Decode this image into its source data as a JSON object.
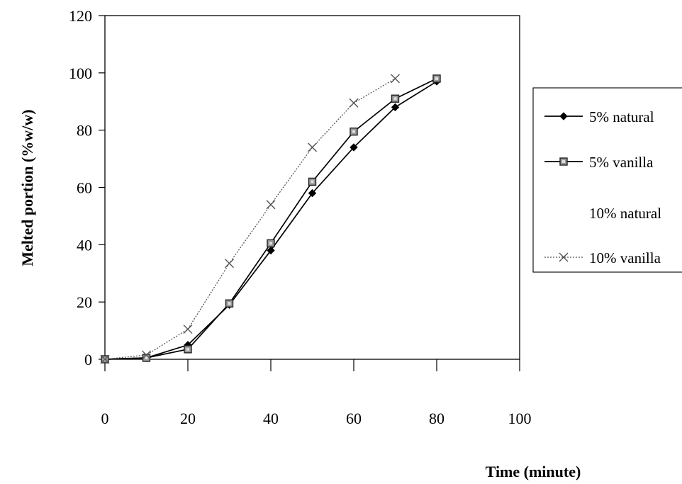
{
  "chart_data": {
    "type": "line",
    "xlabel": "Time (minute)",
    "ylabel": "Melted portion (%w/w)",
    "xlim": [
      0,
      100
    ],
    "ylim": [
      0,
      120
    ],
    "x_ticks": [
      0,
      20,
      40,
      60,
      80,
      100
    ],
    "y_ticks": [
      0,
      20,
      40,
      60,
      80,
      100,
      120
    ],
    "grid": false,
    "legend_position": "right",
    "series": [
      {
        "name": "5% natural",
        "color": "#000000",
        "marker": "diamond",
        "line_style": "solid",
        "x": [
          0,
          10,
          20,
          30,
          40,
          50,
          60,
          70,
          80
        ],
        "y": [
          0,
          0.5,
          5,
          19,
          38,
          58,
          74,
          88,
          97
        ]
      },
      {
        "name": "5% vanilla",
        "color": "#000000",
        "marker": "square",
        "line_style": "solid",
        "x": [
          0,
          10,
          20,
          30,
          40,
          50,
          60,
          70,
          80
        ],
        "y": [
          0,
          0.5,
          3.5,
          19.5,
          40.5,
          62,
          79.5,
          91,
          98
        ]
      },
      {
        "name": "10% natural",
        "color": "#ffffff",
        "marker": "none",
        "line_style": "none",
        "x": [],
        "y": []
      },
      {
        "name": "10% vanilla",
        "color": "#555555",
        "marker": "x",
        "line_style": "dotted",
        "x": [
          0,
          10,
          20,
          30,
          40,
          50,
          60,
          70
        ],
        "y": [
          0,
          1.5,
          10.5,
          33.5,
          54,
          74,
          89.5,
          98
        ]
      }
    ]
  }
}
